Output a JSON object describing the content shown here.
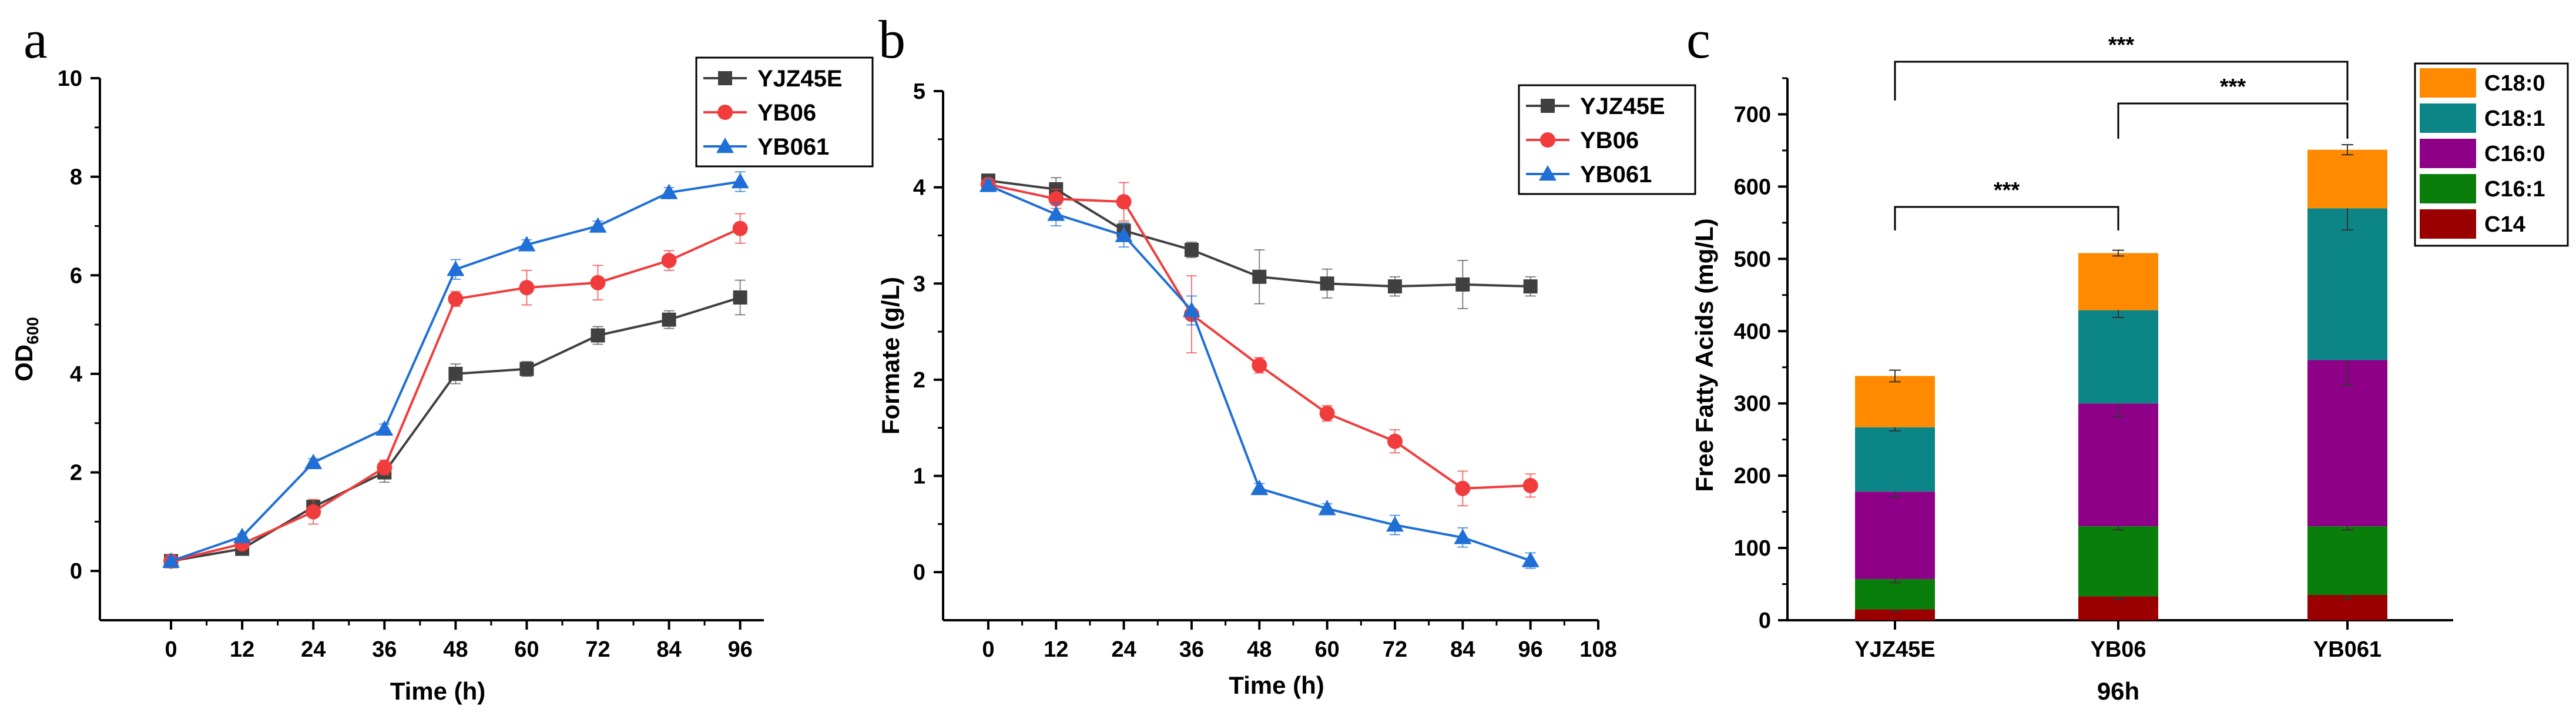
{
  "figure": {
    "panel_labels": [
      "a",
      "b",
      "c"
    ]
  },
  "chart_data": [
    {
      "type": "line",
      "panel": "a",
      "xlabel": "Time (h)",
      "ylabel": "OD",
      "ylabel_sub": "600",
      "xlim": [
        -12,
        100
      ],
      "ylim": [
        -1,
        10
      ],
      "xticks": [
        0,
        12,
        24,
        36,
        48,
        60,
        72,
        84,
        96
      ],
      "yticks": [
        0,
        2,
        4,
        6,
        8,
        10
      ],
      "legend_position": "top-right",
      "series": [
        {
          "name": "YJZ45E",
          "marker": "square",
          "color": "#404040",
          "x": [
            0,
            12,
            24,
            36,
            48,
            60,
            72,
            84,
            96
          ],
          "y": [
            0.2,
            0.45,
            1.3,
            2.0,
            4.0,
            4.1,
            4.78,
            5.1,
            5.55
          ],
          "err": [
            0.08,
            0.05,
            0.1,
            0.2,
            0.2,
            0.15,
            0.18,
            0.18,
            0.35
          ]
        },
        {
          "name": "YB06",
          "marker": "circle",
          "color": "#f03c3c",
          "x": [
            0,
            12,
            24,
            36,
            48,
            60,
            72,
            84,
            96
          ],
          "y": [
            0.2,
            0.55,
            1.2,
            2.1,
            5.52,
            5.75,
            5.85,
            6.3,
            6.95
          ],
          "err": [
            0.08,
            0.08,
            0.25,
            0.15,
            0.15,
            0.35,
            0.35,
            0.2,
            0.3
          ]
        },
        {
          "name": "YB061",
          "marker": "triangle",
          "color": "#1f6fd6",
          "x": [
            0,
            12,
            24,
            36,
            48,
            60,
            72,
            84,
            96
          ],
          "y": [
            0.2,
            0.7,
            2.2,
            2.88,
            6.12,
            6.62,
            7.0,
            7.68,
            7.9
          ],
          "err": [
            0.08,
            0.05,
            0.08,
            0.1,
            0.2,
            0.1,
            0.1,
            0.1,
            0.2
          ]
        }
      ]
    },
    {
      "type": "line",
      "panel": "b",
      "xlabel": "Time (h)",
      "ylabel": "Formate (g/L)",
      "xlim": [
        -8,
        108
      ],
      "ylim": [
        -0.5,
        5
      ],
      "xticks": [
        0,
        12,
        24,
        36,
        48,
        60,
        72,
        84,
        96,
        108
      ],
      "yticks": [
        0,
        1,
        2,
        3,
        4,
        5
      ],
      "legend_position": "top-right",
      "series": [
        {
          "name": "YJZ45E",
          "marker": "square",
          "color": "#404040",
          "x": [
            0,
            12,
            24,
            36,
            48,
            60,
            72,
            84,
            96
          ],
          "y": [
            4.07,
            3.98,
            3.55,
            3.35,
            3.07,
            3.0,
            2.97,
            2.99,
            2.97
          ],
          "err": [
            0.06,
            0.12,
            0.08,
            0.08,
            0.28,
            0.15,
            0.1,
            0.25,
            0.1
          ]
        },
        {
          "name": "YB06",
          "marker": "circle",
          "color": "#f03c3c",
          "x": [
            0,
            12,
            24,
            36,
            48,
            60,
            72,
            84,
            96
          ],
          "y": [
            4.03,
            3.88,
            3.85,
            2.68,
            2.15,
            1.65,
            1.36,
            0.87,
            0.9
          ],
          "err": [
            0.05,
            0.1,
            0.2,
            0.4,
            0.08,
            0.08,
            0.12,
            0.18,
            0.12
          ]
        },
        {
          "name": "YB061",
          "marker": "triangle",
          "color": "#1f6fd6",
          "x": [
            0,
            12,
            24,
            36,
            48,
            60,
            72,
            84,
            96
          ],
          "y": [
            4.02,
            3.72,
            3.5,
            2.72,
            0.87,
            0.66,
            0.49,
            0.36,
            0.12
          ],
          "err": [
            0.05,
            0.12,
            0.12,
            0.15,
            0.05,
            0.05,
            0.1,
            0.1,
            0.08
          ]
        }
      ]
    },
    {
      "type": "bar",
      "stacked": true,
      "panel": "c",
      "xlabel": "96h",
      "ylabel": "Free Fatty Acids (mg/L)",
      "ylim": [
        0,
        750
      ],
      "yticks": [
        0,
        100,
        200,
        300,
        400,
        500,
        600,
        700
      ],
      "categories": [
        "YJZ45E",
        "YB06",
        "YB061"
      ],
      "legend_position": "top-right",
      "series": [
        {
          "name": "C14",
          "color": "#9a0000",
          "values": [
            15,
            33,
            35
          ],
          "top_err": [
            3,
            4,
            5
          ]
        },
        {
          "name": "C16:1",
          "color": "#0a7e0a",
          "values": [
            42,
            97,
            95
          ],
          "top_err": [
            5,
            5,
            5
          ]
        },
        {
          "name": "C16:0",
          "color": "#8e0087",
          "values": [
            121,
            170,
            230
          ],
          "top_err": [
            8,
            18,
            35
          ]
        },
        {
          "name": "C18:1",
          "color": "#0c8587",
          "values": [
            89,
            129,
            210
          ],
          "top_err": [
            5,
            10,
            30
          ]
        },
        {
          "name": "C18:0",
          "color": "#ff8a00",
          "values": [
            71,
            79,
            81
          ],
          "top_err": [
            8,
            4,
            7
          ]
        }
      ],
      "significance": [
        {
          "from": "YJZ45E",
          "to": "YB06",
          "label": "***"
        },
        {
          "from": "YJZ45E",
          "to": "YB061",
          "label": "***"
        },
        {
          "from": "YB06",
          "to": "YB061",
          "label": "***"
        }
      ]
    }
  ]
}
